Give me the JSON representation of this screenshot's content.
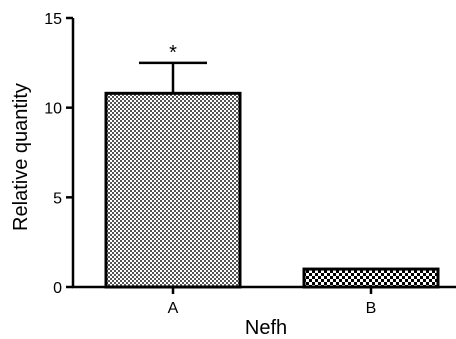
{
  "chart_data": {
    "type": "bar",
    "categories": [
      "A",
      "B"
    ],
    "values": [
      10.8,
      1.0
    ],
    "errors": [
      1.7,
      0
    ],
    "annotations": [
      {
        "category": "A",
        "text": "*"
      }
    ],
    "title": "",
    "xlabel": "Nefh",
    "ylabel": "Relative quantity",
    "ylim": [
      0,
      15
    ],
    "yticks": [
      0,
      5,
      10,
      15
    ],
    "grid": false,
    "colors": {
      "A": "#9a9a9a",
      "B": "#7f7f7f",
      "edge": "#000000"
    }
  }
}
